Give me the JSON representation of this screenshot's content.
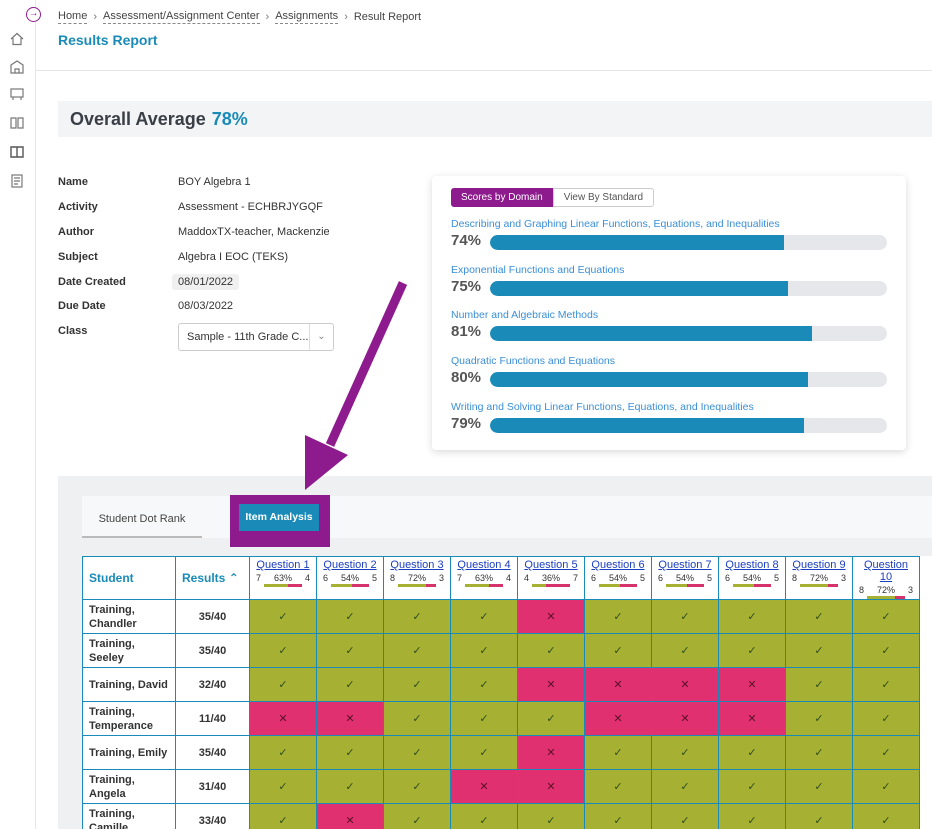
{
  "breadcrumb": {
    "items": [
      "Home",
      "Assessment/Assignment Center",
      "Assignments"
    ],
    "current": "Result Report"
  },
  "page_title": "Results Report",
  "overall": {
    "label": "Overall Average",
    "value": "78%"
  },
  "info": {
    "name_label": "Name",
    "name": "BOY Algebra 1",
    "activity_label": "Activity",
    "activity": "Assessment - ECHBRJYGQF",
    "author_label": "Author",
    "author": "MaddoxTX-teacher, Mackenzie",
    "subject_label": "Subject",
    "subject": "Algebra I EOC (TEKS)",
    "created_label": "Date Created",
    "created": "08/01/2022",
    "due_label": "Due Date",
    "due": "08/03/2022",
    "class_label": "Class",
    "class_value": "Sample - 11th Grade C..."
  },
  "domain_card": {
    "toggle_on": "Scores by Domain",
    "toggle_off": "View By Standard",
    "domains": [
      {
        "name": "Describing and Graphing Linear Functions, Equations, and Inequalities",
        "pct": "74%",
        "value": 74
      },
      {
        "name": "Exponential Functions and Equations",
        "pct": "75%",
        "value": 75
      },
      {
        "name": "Number and Algebraic Methods",
        "pct": "81%",
        "value": 81
      },
      {
        "name": "Quadratic Functions and Equations",
        "pct": "80%",
        "value": 80
      },
      {
        "name": "Writing and Solving Linear Functions, Equations, and Inequalities",
        "pct": "79%",
        "value": 79
      }
    ]
  },
  "tabs": {
    "student_dot_rank": "Student Dot Rank",
    "item_analysis": "Item Analysis"
  },
  "grid": {
    "student_header": "Student",
    "results_header": "Results",
    "results_sort_icon": "chevron-up-icon",
    "questions": [
      {
        "label": "Question 1",
        "correct": "7",
        "pct": "63%",
        "wrong": "4"
      },
      {
        "label": "Question 2",
        "correct": "6",
        "pct": "54%",
        "wrong": "5"
      },
      {
        "label": "Question 3",
        "correct": "8",
        "pct": "72%",
        "wrong": "3"
      },
      {
        "label": "Question 4",
        "correct": "7",
        "pct": "63%",
        "wrong": "4"
      },
      {
        "label": "Question 5",
        "correct": "4",
        "pct": "36%",
        "wrong": "7"
      },
      {
        "label": "Question 6",
        "correct": "6",
        "pct": "54%",
        "wrong": "5"
      },
      {
        "label": "Question 7",
        "correct": "6",
        "pct": "54%",
        "wrong": "5"
      },
      {
        "label": "Question 8",
        "correct": "6",
        "pct": "54%",
        "wrong": "5"
      },
      {
        "label": "Question 9",
        "correct": "8",
        "pct": "72%",
        "wrong": "3"
      },
      {
        "label": "Question 10",
        "correct": "8",
        "pct": "72%",
        "wrong": "3"
      }
    ],
    "students": [
      {
        "name": "Training, Chandler",
        "result": "35/40",
        "answers": [
          1,
          1,
          1,
          1,
          0,
          1,
          1,
          1,
          1,
          1
        ]
      },
      {
        "name": "Training, Seeley",
        "result": "35/40",
        "answers": [
          1,
          1,
          1,
          1,
          1,
          1,
          1,
          1,
          1,
          1
        ]
      },
      {
        "name": "Training, David",
        "result": "32/40",
        "answers": [
          1,
          1,
          1,
          1,
          0,
          0,
          0,
          0,
          1,
          1
        ]
      },
      {
        "name": "Training, Temperance",
        "result": "11/40",
        "answers": [
          0,
          0,
          1,
          1,
          1,
          0,
          0,
          0,
          1,
          1
        ]
      },
      {
        "name": "Training, Emily",
        "result": "35/40",
        "answers": [
          1,
          1,
          1,
          1,
          0,
          1,
          1,
          1,
          1,
          1
        ]
      },
      {
        "name": "Training, Angela",
        "result": "31/40",
        "answers": [
          1,
          1,
          1,
          0,
          0,
          1,
          1,
          1,
          1,
          1
        ]
      },
      {
        "name": "Training, Camille",
        "result": "33/40",
        "answers": [
          1,
          0,
          1,
          1,
          1,
          1,
          1,
          1,
          1,
          1
        ]
      }
    ]
  },
  "colors": {
    "accent": "#1a8bb8",
    "highlight": "#8e1b8e",
    "correct": "#a6b134",
    "incorrect": "#e0306f"
  },
  "icons": {
    "check": "check-icon",
    "cross": "x-icon"
  }
}
